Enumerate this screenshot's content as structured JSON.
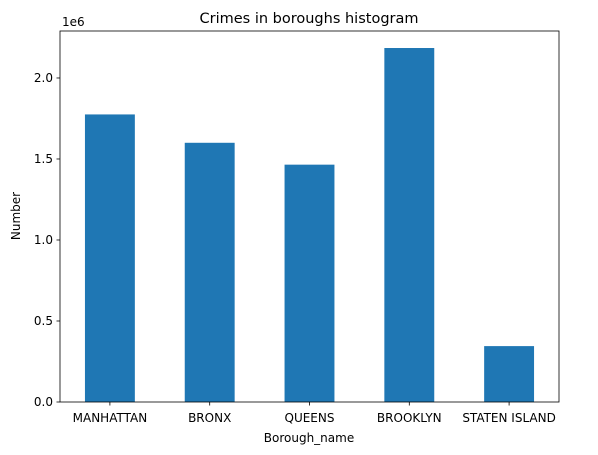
{
  "chart_data": {
    "type": "bar",
    "title": "Crimes in boroughs histogram",
    "xlabel": "Borough_name",
    "ylabel": "Number",
    "y_scale_label": "1e6",
    "categories": [
      "MANHATTAN",
      "BRONX",
      "QUEENS",
      "BROOKLYN",
      "STATEN ISLAND"
    ],
    "values": [
      1775000,
      1600000,
      1465000,
      2185000,
      345000
    ],
    "ylim": [
      0,
      2290000
    ],
    "yticks": [
      0,
      500000,
      1000000,
      1500000,
      2000000
    ],
    "ytick_labels": [
      "0.0",
      "0.5",
      "1.0",
      "1.5",
      "2.0"
    ],
    "grid": false,
    "bar_color": "#1f77b4"
  }
}
